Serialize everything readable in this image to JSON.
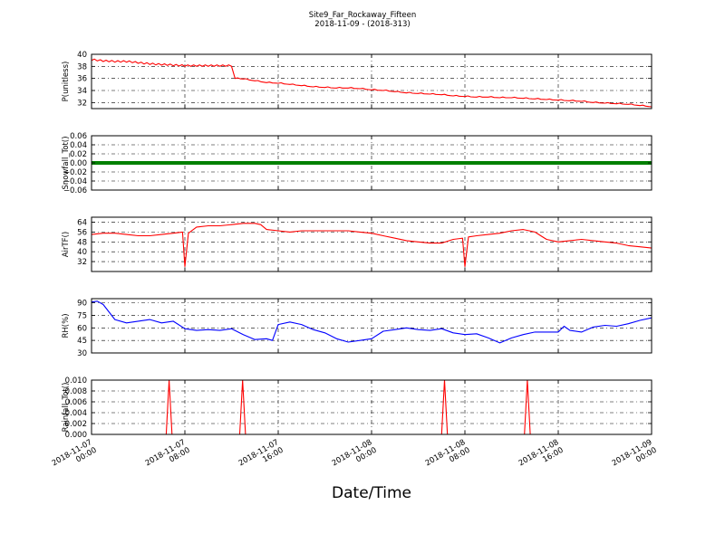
{
  "figure": {
    "title": "Site9_Far_Rockaway_Fifteen",
    "subtitle": "2018-11-09 - (2018-313)",
    "xlabel": "Date/Time"
  },
  "chart_data": {
    "type": "line",
    "x_range": [
      "2018-11-07 00:00",
      "2018-11-09 00:00"
    ],
    "x_tick_labels": [
      [
        "2018-11-07",
        "00:00"
      ],
      [
        "2018-11-07",
        "08:00"
      ],
      [
        "2018-11-07",
        "16:00"
      ],
      [
        "2018-11-08",
        "00:00"
      ],
      [
        "2018-11-08",
        "08:00"
      ],
      [
        "2018-11-08",
        "16:00"
      ],
      [
        "2018-11-09",
        "00:00"
      ]
    ],
    "grid": true,
    "panels": [
      {
        "id": "pressure",
        "ylabel": "P(unitless)",
        "ylim": [
          31,
          40
        ],
        "yticks": [
          32,
          34,
          36,
          38,
          40
        ],
        "ytick_labels": [
          "32",
          "34",
          "36",
          "38",
          "40"
        ],
        "color": "#ff0000",
        "hours": [
          0,
          1,
          2,
          3,
          4,
          5,
          6,
          7,
          8,
          9,
          10,
          11,
          12,
          12.3,
          13,
          14,
          15,
          16,
          17,
          18,
          19,
          20,
          21,
          22,
          23,
          24,
          25,
          26,
          27,
          28,
          29,
          30,
          31,
          32,
          33,
          34,
          35,
          36,
          37,
          38,
          39,
          40,
          41,
          42,
          43,
          44,
          45,
          46,
          47,
          48
        ],
        "values": [
          39.0,
          38.8,
          38.7,
          38.7,
          38.5,
          38.3,
          38.2,
          38.1,
          38.0,
          38.0,
          38.0,
          38.0,
          38.0,
          36.0,
          35.9,
          35.6,
          35.3,
          35.2,
          35.0,
          34.8,
          34.6,
          34.5,
          34.4,
          34.4,
          34.3,
          34.1,
          34.0,
          33.8,
          33.6,
          33.5,
          33.4,
          33.3,
          33.1,
          33.0,
          32.9,
          32.9,
          32.8,
          32.8,
          32.7,
          32.6,
          32.5,
          32.4,
          32.3,
          32.2,
          32.0,
          31.9,
          31.8,
          31.7,
          31.5,
          31.3
        ]
      },
      {
        "id": "snowfall",
        "ylabel": "Snowfall_Tot()",
        "ylim": [
          -0.06,
          0.06
        ],
        "yticks": [
          -0.06,
          -0.04,
          -0.02,
          0.0,
          0.02,
          0.04,
          0.06
        ],
        "ytick_labels": [
          "−0.06",
          "−0.04",
          "−0.02",
          "0.00",
          "0.02",
          "0.04",
          "0.06"
        ],
        "color": "#008000",
        "hours": [
          0,
          48
        ],
        "values": [
          0,
          0
        ]
      },
      {
        "id": "airtemp",
        "ylabel": "AirTF()",
        "ylim": [
          24,
          68
        ],
        "yticks": [
          32,
          40,
          48,
          56,
          64
        ],
        "ytick_labels": [
          "32",
          "40",
          "48",
          "56",
          "64"
        ],
        "color": "#ff0000",
        "hours": [
          0,
          1,
          2,
          3,
          4,
          5,
          6,
          7,
          7.8,
          8.0,
          8.3,
          9,
          10,
          11,
          12,
          13,
          14,
          14.5,
          15,
          16,
          17,
          18,
          19,
          20,
          21,
          22,
          23,
          24,
          25,
          26,
          27,
          28,
          29,
          30,
          31,
          31.8,
          32.0,
          32.3,
          33,
          34,
          35,
          36,
          37,
          38,
          38.5,
          39,
          40,
          41,
          42,
          43,
          44,
          45,
          46,
          47,
          48
        ],
        "values": [
          54,
          55,
          55,
          54,
          53,
          53,
          54,
          55,
          56,
          28,
          55,
          60,
          61,
          61,
          62,
          63,
          63,
          62,
          58,
          57,
          56,
          57,
          57,
          57,
          57,
          57,
          56,
          55,
          53,
          51,
          49,
          48,
          47,
          47,
          50,
          51,
          28,
          52,
          53,
          54,
          55,
          57,
          58,
          56,
          53,
          50,
          48,
          49,
          50,
          49,
          48,
          47,
          45,
          44,
          43
        ]
      },
      {
        "id": "rh",
        "ylabel": "RH(%)",
        "ylim": [
          30,
          95
        ],
        "yticks": [
          30,
          45,
          60,
          75,
          90
        ],
        "ytick_labels": [
          "30",
          "45",
          "60",
          "75",
          "90"
        ],
        "color": "#0000ff",
        "hours": [
          0,
          0.5,
          1,
          2,
          3,
          4,
          5,
          6,
          7,
          8,
          9,
          10,
          11,
          12,
          13,
          14,
          15,
          15.5,
          16,
          17,
          18,
          19,
          20,
          21,
          22,
          23,
          24,
          25,
          26,
          27,
          28,
          29,
          30,
          31,
          32,
          33,
          34,
          35,
          36,
          37,
          38,
          39,
          40,
          40.5,
          41,
          42,
          43,
          44,
          45,
          46,
          47,
          48
        ],
        "values": [
          91,
          92,
          88,
          70,
          66,
          68,
          70,
          66,
          68,
          59,
          57,
          58,
          57,
          59,
          52,
          46,
          47,
          45,
          64,
          67,
          64,
          58,
          54,
          47,
          43,
          45,
          47,
          56,
          58,
          60,
          58,
          57,
          59,
          54,
          52,
          53,
          48,
          42,
          48,
          52,
          55,
          55,
          55,
          62,
          57,
          55,
          61,
          63,
          62,
          65,
          69,
          72
        ]
      },
      {
        "id": "rainfall",
        "ylabel": "Rainfall_Tot()",
        "ylim": [
          0,
          0.01
        ],
        "yticks": [
          0.0,
          0.002,
          0.004,
          0.006,
          0.008,
          0.01
        ],
        "ytick_labels": [
          "0.000",
          "0.002",
          "0.004",
          "0.006",
          "0.008",
          "0.010"
        ],
        "color": "#ff0000",
        "hours": [
          0,
          6.4,
          6.65,
          6.9,
          12.7,
          12.95,
          13.2,
          30.0,
          30.25,
          30.5,
          37.1,
          37.35,
          37.6,
          48
        ],
        "values": [
          0,
          0,
          0.01,
          0,
          0,
          0.01,
          0,
          0,
          0.01,
          0,
          0,
          0.01,
          0,
          0
        ]
      }
    ]
  }
}
